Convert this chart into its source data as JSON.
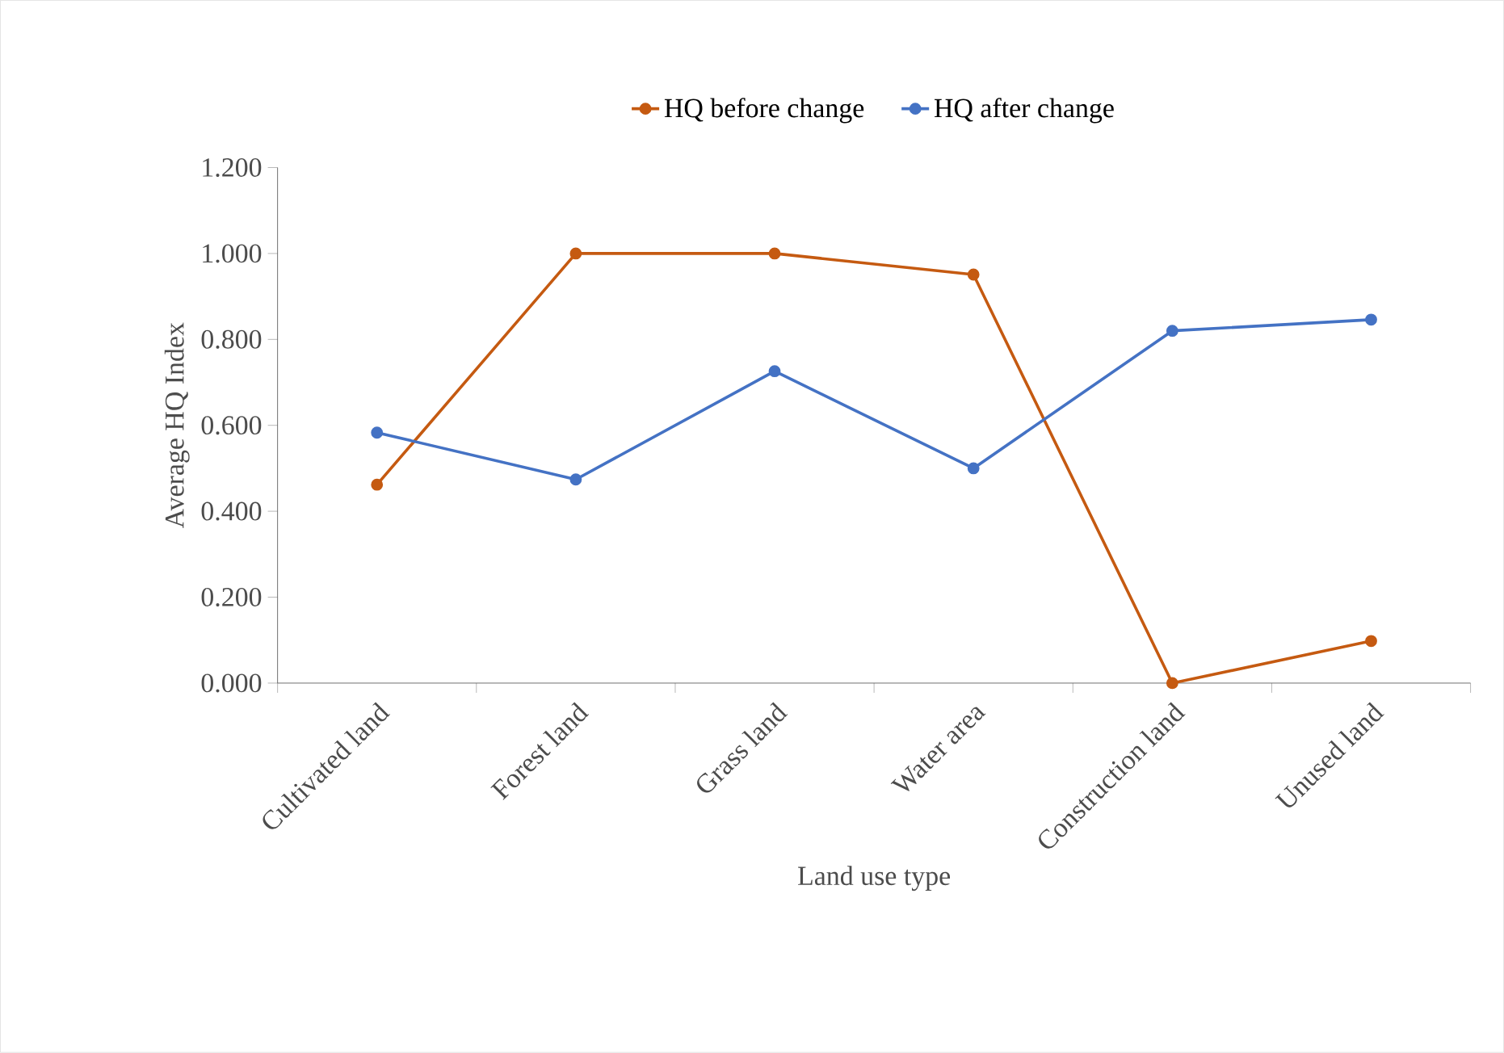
{
  "chart_data": {
    "type": "line",
    "xlabel": "Land use type",
    "ylabel": "Average HQ Index",
    "categories": [
      "Cultivated land",
      "Forest land",
      "Grass land",
      "Water area",
      "Construction land",
      "Unused land"
    ],
    "series": [
      {
        "name": "HQ before change",
        "color": "#c55a11",
        "values": [
          0.462,
          1.0,
          1.0,
          0.951,
          0.0,
          0.098
        ]
      },
      {
        "name": "HQ after change",
        "color": "#4472c4",
        "values": [
          0.583,
          0.474,
          0.726,
          0.5,
          0.82,
          0.846
        ]
      }
    ],
    "ylim": [
      0,
      1.2
    ],
    "yticks": [
      {
        "value": 0,
        "label": "0.000"
      },
      {
        "value": 0.2,
        "label": "0.200"
      },
      {
        "value": 0.4,
        "label": "0.400"
      },
      {
        "value": 0.6,
        "label": "0.600"
      },
      {
        "value": 0.8,
        "label": "0.800"
      },
      {
        "value": 1.0,
        "label": "1.000"
      },
      {
        "value": 1.2,
        "label": "1.200"
      }
    ],
    "grid": false,
    "legend": "top",
    "marker": "circle",
    "line_style": "solid"
  }
}
